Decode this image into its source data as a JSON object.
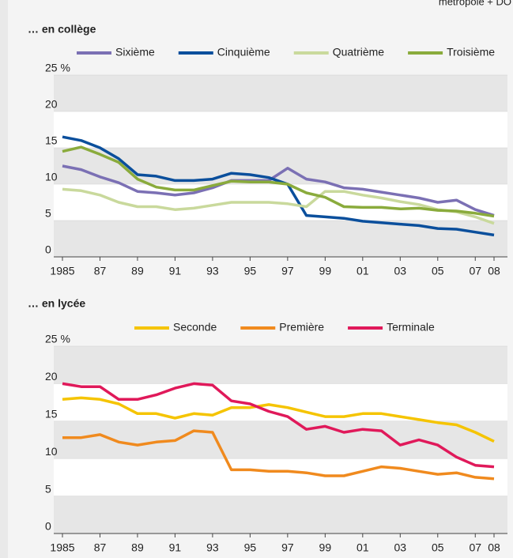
{
  "note": "métropole + DO",
  "chart_data": [
    {
      "type": "line",
      "title": "… en collège",
      "x": [
        1985,
        1986,
        1987,
        1988,
        1989,
        1990,
        1991,
        1992,
        1993,
        1994,
        1995,
        1996,
        1997,
        1998,
        1999,
        2000,
        2001,
        2002,
        2003,
        2004,
        2005,
        2006,
        2007,
        2008
      ],
      "series": [
        {
          "name": "Sixième",
          "color": "#7b70b4",
          "values": [
            12.5,
            12,
            11,
            10.2,
            9,
            8.8,
            8.5,
            8.8,
            9.5,
            10.5,
            10.5,
            10.5,
            12.2,
            10.7,
            10.3,
            9.5,
            9.3,
            8.9,
            8.5,
            8.1,
            7.5,
            7.8,
            6.5,
            5.7
          ]
        },
        {
          "name": "Cinquième",
          "color": "#0b4f9c",
          "values": [
            16.5,
            16,
            15,
            13.5,
            11.3,
            11.1,
            10.5,
            10.5,
            10.7,
            11.5,
            11.3,
            10.9,
            10,
            5.7,
            5.5,
            5.3,
            4.9,
            4.7,
            4.5,
            4.3,
            3.9,
            3.8,
            3.4,
            3
          ]
        },
        {
          "name": "Quatrième",
          "color": "#c9d99c",
          "values": [
            9.3,
            9.1,
            8.5,
            7.5,
            6.9,
            6.9,
            6.5,
            6.7,
            7.1,
            7.5,
            7.5,
            7.5,
            7.3,
            6.9,
            9,
            9,
            8.5,
            8.1,
            7.6,
            7.2,
            6.5,
            6.2,
            5.5,
            4.6
          ]
        },
        {
          "name": "Troisième",
          "color": "#8aab3c",
          "values": [
            14.5,
            15.1,
            14.1,
            13,
            10.7,
            9.6,
            9.2,
            9.2,
            9.8,
            10.4,
            10.3,
            10.3,
            10,
            8.8,
            8.2,
            6.9,
            6.8,
            6.8,
            6.6,
            6.7,
            6.4,
            6.3,
            6,
            5.6
          ]
        }
      ],
      "xlim": [
        1985,
        2008
      ],
      "xticks": [
        {
          "value": 1985,
          "label": "1985"
        },
        {
          "value": 1987,
          "label": "87"
        },
        {
          "value": 1989,
          "label": "89"
        },
        {
          "value": 1991,
          "label": "91"
        },
        {
          "value": 1993,
          "label": "93"
        },
        {
          "value": 1995,
          "label": "95"
        },
        {
          "value": 1997,
          "label": "97"
        },
        {
          "value": 1999,
          "label": "99"
        },
        {
          "value": 2001,
          "label": "01"
        },
        {
          "value": 2003,
          "label": "03"
        },
        {
          "value": 2005,
          "label": "05"
        },
        {
          "value": 2007,
          "label": "07"
        },
        {
          "value": 2008,
          "label": "08"
        }
      ],
      "ylim": [
        0,
        25
      ],
      "yticks": [
        0,
        5,
        10,
        15,
        20,
        {
          "value": 25,
          "label": "25 %"
        }
      ]
    },
    {
      "type": "line",
      "title": "… en lycée",
      "x": [
        1985,
        1986,
        1987,
        1988,
        1989,
        1990,
        1991,
        1992,
        1993,
        1994,
        1995,
        1996,
        1997,
        1998,
        1999,
        2000,
        2001,
        2002,
        2003,
        2004,
        2005,
        2006,
        2007,
        2008
      ],
      "series": [
        {
          "name": "Seconde",
          "color": "#f5c400",
          "values": [
            17.9,
            18.1,
            17.9,
            17.3,
            16,
            16,
            15.4,
            16,
            15.8,
            16.8,
            16.8,
            17.2,
            16.8,
            16.2,
            15.6,
            15.6,
            16,
            16,
            15.6,
            15.2,
            14.8,
            14.5,
            13.5,
            12.3
          ]
        },
        {
          "name": "Première",
          "color": "#f08a1e",
          "values": [
            12.8,
            12.8,
            13.2,
            12.2,
            11.8,
            12.2,
            12.4,
            13.7,
            13.5,
            8.5,
            8.5,
            8.3,
            8.3,
            8.1,
            7.7,
            7.7,
            8.3,
            8.9,
            8.7,
            8.3,
            7.9,
            8.1,
            7.5,
            7.3
          ]
        },
        {
          "name": "Terminale",
          "color": "#e0195a",
          "values": [
            20,
            19.6,
            19.6,
            17.9,
            17.9,
            18.5,
            19.4,
            20,
            19.8,
            17.7,
            17.3,
            16.3,
            15.6,
            13.9,
            14.3,
            13.5,
            13.9,
            13.7,
            11.8,
            12.5,
            11.8,
            10.2,
            9.1,
            8.9
          ]
        }
      ],
      "xlim": [
        1985,
        2008
      ],
      "xticks": [
        {
          "value": 1985,
          "label": "1985"
        },
        {
          "value": 1987,
          "label": "87"
        },
        {
          "value": 1989,
          "label": "89"
        },
        {
          "value": 1991,
          "label": "91"
        },
        {
          "value": 1993,
          "label": "93"
        },
        {
          "value": 1995,
          "label": "95"
        },
        {
          "value": 1997,
          "label": "97"
        },
        {
          "value": 1999,
          "label": "99"
        },
        {
          "value": 2001,
          "label": "01"
        },
        {
          "value": 2003,
          "label": "03"
        },
        {
          "value": 2005,
          "label": "05"
        },
        {
          "value": 2007,
          "label": "07"
        },
        {
          "value": 2008,
          "label": "08"
        }
      ],
      "ylim": [
        0,
        25
      ],
      "yticks": [
        0,
        5,
        10,
        15,
        20,
        {
          "value": 25,
          "label": "25 %"
        }
      ]
    }
  ]
}
